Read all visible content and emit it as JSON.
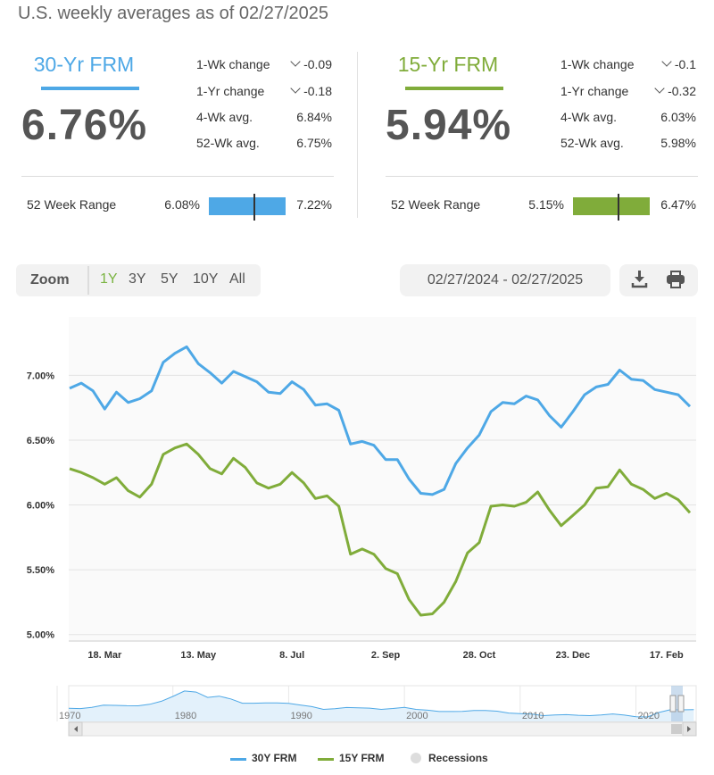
{
  "header": {
    "title": "U.S. weekly averages as of 02/27/2025"
  },
  "products": [
    {
      "name": "30-Yr FRM",
      "rate": "6.76%",
      "color": "#4ea8e6",
      "stats": [
        {
          "label": "1-Wk change",
          "value": "-0.09",
          "chevron": true
        },
        {
          "label": "1-Yr change",
          "value": "-0.18",
          "chevron": true
        },
        {
          "label": "4-Wk avg.",
          "value": "6.84%",
          "chevron": false
        },
        {
          "label": "52-Wk avg.",
          "value": "6.75%",
          "chevron": false
        }
      ],
      "range": {
        "label": "52 Week Range",
        "low": "6.08%",
        "high": "7.22%",
        "low_value": 6.08,
        "high_value": 7.22,
        "current_value": 6.76
      }
    },
    {
      "name": "15-Yr FRM",
      "rate": "5.94%",
      "color": "#80ac3a",
      "stats": [
        {
          "label": "1-Wk change",
          "value": "-0.1",
          "chevron": true
        },
        {
          "label": "1-Yr change",
          "value": "-0.32",
          "chevron": true
        },
        {
          "label": "4-Wk avg.",
          "value": "6.03%",
          "chevron": false
        },
        {
          "label": "52-Wk avg.",
          "value": "5.98%",
          "chevron": false
        }
      ],
      "range": {
        "label": "52 Week Range",
        "low": "5.15%",
        "high": "6.47%",
        "low_value": 5.15,
        "high_value": 6.47,
        "current_value": 5.94
      }
    }
  ],
  "toolbar": {
    "zoom_label": "Zoom",
    "zoom_options": [
      "1Y",
      "3Y",
      "5Y",
      "10Y",
      "All"
    ],
    "active_zoom": "1Y",
    "date_range": "02/27/2024 - 02/27/2025",
    "icons": [
      "download-icon",
      "print-icon"
    ]
  },
  "chart_data": {
    "type": "line",
    "y_ticks": [
      "7.00%",
      "6.50%",
      "6.00%",
      "5.50%",
      "5.00%"
    ],
    "y_tick_values": [
      7.0,
      6.5,
      6.0,
      5.5,
      5.0
    ],
    "ylim": [
      4.95,
      7.45
    ],
    "x_ticks": [
      {
        "label": "18. Mar",
        "index": 3
      },
      {
        "label": "13. May",
        "index": 11
      },
      {
        "label": "8. Jul",
        "index": 19
      },
      {
        "label": "2. Sep",
        "index": 27
      },
      {
        "label": "28. Oct",
        "index": 35
      },
      {
        "label": "23. Dec",
        "index": 43
      },
      {
        "label": "17. Feb",
        "index": 51
      }
    ],
    "grid": true,
    "series": [
      {
        "name": "30Y FRM",
        "color": "#4ea8e6",
        "values": [
          6.9,
          6.94,
          6.88,
          6.74,
          6.87,
          6.79,
          6.82,
          6.88,
          7.1,
          7.17,
          7.22,
          7.09,
          7.02,
          6.94,
          7.03,
          6.99,
          6.95,
          6.87,
          6.86,
          6.95,
          6.89,
          6.77,
          6.78,
          6.73,
          6.47,
          6.49,
          6.46,
          6.35,
          6.35,
          6.2,
          6.09,
          6.08,
          6.12,
          6.32,
          6.44,
          6.54,
          6.72,
          6.79,
          6.78,
          6.84,
          6.81,
          6.69,
          6.6,
          6.72,
          6.85,
          6.91,
          6.93,
          7.04,
          6.97,
          6.96,
          6.89,
          6.87,
          6.85,
          6.76
        ]
      },
      {
        "name": "15Y FRM",
        "color": "#80ac3a",
        "values": [
          6.28,
          6.25,
          6.21,
          6.16,
          6.21,
          6.11,
          6.06,
          6.16,
          6.39,
          6.44,
          6.47,
          6.39,
          6.28,
          6.24,
          6.36,
          6.29,
          6.17,
          6.13,
          6.16,
          6.25,
          6.17,
          6.05,
          6.07,
          5.99,
          5.62,
          5.66,
          5.62,
          5.51,
          5.47,
          5.27,
          5.15,
          5.16,
          5.25,
          5.41,
          5.63,
          5.71,
          5.99,
          6.0,
          5.99,
          6.02,
          6.1,
          5.96,
          5.84,
          5.92,
          6.0,
          6.13,
          6.14,
          6.27,
          6.16,
          6.12,
          6.05,
          6.09,
          6.04,
          5.94
        ]
      }
    ],
    "navigator": {
      "x_labels": [
        "1970",
        "1980",
        "1990",
        "2000",
        "2010",
        "2020"
      ],
      "label_years": [
        1970,
        1980,
        1990,
        2000,
        2010,
        2020
      ],
      "year_range": [
        1971,
        2025.2
      ],
      "annual_30y": [
        7.54,
        7.38,
        8.04,
        9.19,
        9.05,
        8.87,
        8.85,
        9.64,
        11.2,
        13.74,
        16.63,
        16.04,
        13.24,
        13.88,
        12.43,
        10.19,
        10.21,
        10.34,
        10.32,
        10.13,
        9.25,
        8.39,
        6.93,
        7.31,
        7.93,
        7.81,
        7.6,
        6.94,
        7.44,
        8.05,
        6.97,
        6.54,
        5.83,
        5.84,
        5.87,
        6.41,
        6.34,
        6.03,
        5.04,
        4.69,
        4.45,
        3.66,
        3.98,
        4.17,
        3.85,
        3.65,
        3.99,
        4.54,
        3.94,
        3.11,
        2.96,
        5.34,
        6.81,
        6.72,
        6.85
      ]
    },
    "legend": [
      {
        "label": "30Y FRM",
        "color": "#4ea8e6",
        "kind": "line"
      },
      {
        "label": "15Y FRM",
        "color": "#80ac3a",
        "kind": "line"
      },
      {
        "label": "Recessions",
        "color": "#dddddd",
        "kind": "dot"
      }
    ],
    "legend_position": "bottom"
  }
}
